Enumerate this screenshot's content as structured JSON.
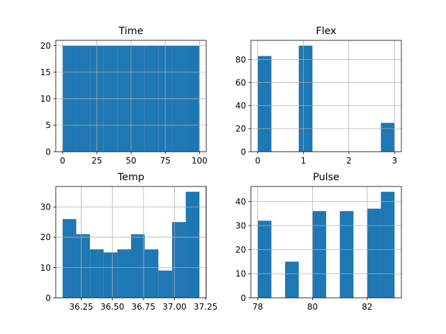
{
  "chart_data": [
    {
      "type": "bar",
      "title": "Time",
      "xlabel": "",
      "ylabel": "",
      "bin_edges": [
        0,
        10,
        20,
        30,
        40,
        50,
        60,
        70,
        80,
        90,
        100
      ],
      "values": [
        20,
        20,
        20,
        20,
        20,
        20,
        20,
        20,
        20,
        20
      ],
      "xlim": [
        -5,
        105
      ],
      "ylim": [
        0,
        21
      ],
      "xticks": [
        0,
        25,
        50,
        75,
        100
      ],
      "yticks": [
        0,
        5,
        10,
        15,
        20
      ],
      "xtick_labels": [
        "0",
        "25",
        "50",
        "75",
        "100"
      ],
      "ytick_labels": [
        "0",
        "5",
        "10",
        "15",
        "20"
      ],
      "grid": true,
      "color": "#1f77b4"
    },
    {
      "type": "bar",
      "title": "Flex",
      "xlabel": "",
      "ylabel": "",
      "bin_edges": [
        0,
        0.3,
        0.6,
        0.9,
        1.2,
        1.5,
        1.8,
        2.1,
        2.4,
        2.7,
        3.0
      ],
      "values": [
        83,
        0,
        0,
        92,
        0,
        0,
        0,
        0,
        0,
        25
      ],
      "xlim": [
        -0.15,
        3.15
      ],
      "ylim": [
        0,
        96.6
      ],
      "xticks": [
        0,
        1,
        2,
        3
      ],
      "yticks": [
        0,
        20,
        40,
        60,
        80
      ],
      "xtick_labels": [
        "0",
        "1",
        "2",
        "3"
      ],
      "ytick_labels": [
        "0",
        "20",
        "40",
        "60",
        "80"
      ],
      "grid": true,
      "color": "#1f77b4"
    },
    {
      "type": "bar",
      "title": "Temp",
      "xlabel": "",
      "ylabel": "",
      "bin_edges": [
        36.1,
        36.21,
        36.32,
        36.43,
        36.54,
        36.65,
        36.76,
        36.87,
        36.98,
        37.09,
        37.2
      ],
      "values": [
        26,
        21,
        16,
        15,
        16,
        21,
        16,
        9,
        25,
        35
      ],
      "xlim": [
        36.045,
        37.255
      ],
      "ylim": [
        0,
        36.75
      ],
      "xticks": [
        36.25,
        36.5,
        36.75,
        37.0,
        37.25
      ],
      "yticks": [
        0,
        10,
        20,
        30
      ],
      "xtick_labels": [
        "36.25",
        "36.50",
        "36.75",
        "37.00",
        "37.25"
      ],
      "ytick_labels": [
        "0",
        "10",
        "20",
        "30"
      ],
      "grid": true,
      "color": "#1f77b4"
    },
    {
      "type": "bar",
      "title": "Pulse",
      "xlabel": "",
      "ylabel": "",
      "bin_edges": [
        78,
        78.5,
        79,
        79.5,
        80,
        80.5,
        81,
        81.5,
        82,
        82.5,
        83
      ],
      "values": [
        32,
        0,
        15,
        0,
        36,
        0,
        36,
        0,
        37,
        44
      ],
      "xlim": [
        77.75,
        83.25
      ],
      "ylim": [
        0,
        46.2
      ],
      "xticks": [
        78,
        80,
        82
      ],
      "yticks": [
        0,
        10,
        20,
        30,
        40
      ],
      "xtick_labels": [
        "78",
        "80",
        "82"
      ],
      "ytick_labels": [
        "0",
        "10",
        "20",
        "30",
        "40"
      ],
      "grid": true,
      "color": "#1f77b4"
    }
  ]
}
